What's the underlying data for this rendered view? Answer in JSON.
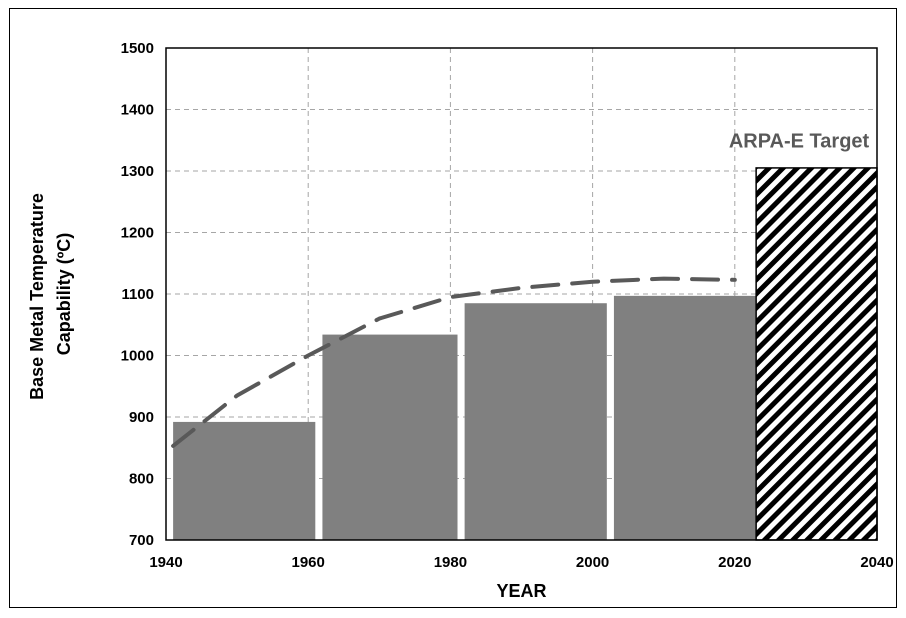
{
  "chart_data": {
    "type": "bar",
    "xlabel": "YEAR",
    "ylabel_lines": [
      "Base Metal Temperature",
      "Capability (ºC)"
    ],
    "xlim": [
      1940,
      2040
    ],
    "ylim": [
      700,
      1500
    ],
    "x_ticks": [
      1940,
      1960,
      1980,
      2000,
      2020,
      2040
    ],
    "y_ticks": [
      700,
      800,
      900,
      1000,
      1100,
      1200,
      1300,
      1400,
      1500
    ],
    "grid": true,
    "bars": [
      {
        "x_start": 1941,
        "x_end": 1961,
        "value": 892
      },
      {
        "x_start": 1962,
        "x_end": 1981,
        "value": 1034
      },
      {
        "x_start": 1982,
        "x_end": 2002,
        "value": 1085
      },
      {
        "x_start": 2003,
        "x_end": 2023,
        "value": 1097
      },
      {
        "x_start": 2023,
        "x_end": 2040,
        "value": 1305,
        "pattern": "hatched"
      }
    ],
    "trend_line": {
      "style": "dashed",
      "x": [
        1941,
        1950,
        1960,
        1970,
        1980,
        1990,
        2000,
        2010,
        2020
      ],
      "y": [
        853,
        935,
        1000,
        1060,
        1095,
        1110,
        1120,
        1125,
        1123
      ]
    },
    "annotations": [
      {
        "text": "ARPA-E Target",
        "x": 2031,
        "y": 1350
      }
    ],
    "colors": {
      "bar": "#808080",
      "trend": "#595959",
      "grid": "#a6a6a6",
      "annotation": "#595959"
    }
  }
}
